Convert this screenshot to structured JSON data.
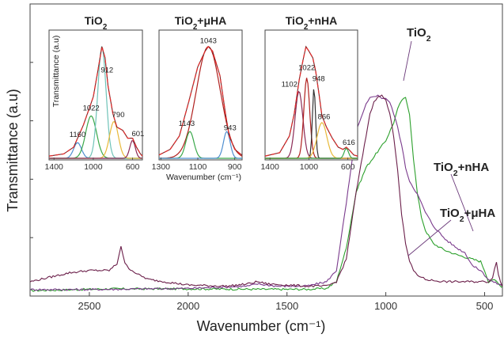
{
  "chart_data": {
    "type": "line",
    "xlabel": "Wavenumber (cm⁻¹)",
    "ylabel": "Transmittance (a.u)",
    "x_reversed": true,
    "xlim": [
      2800,
      410
    ],
    "x_ticks": [
      "2500",
      "2000",
      "1500",
      "1000",
      "500"
    ],
    "x_tick_values": [
      2500,
      2000,
      1500,
      1000,
      500
    ],
    "ylim": [
      0,
      100
    ],
    "y_ticks_labeled": false,
    "grid": false,
    "colors": {
      "TiO2": "#2ca02c",
      "nHA": "#7a3a8c",
      "uHA": "#6b1f4a",
      "fit": "#e03030"
    },
    "series": [
      {
        "name": "TiO2",
        "color": "#2ca02c",
        "x": [
          2800,
          2600,
          2400,
          2000,
          1600,
          1400,
          1300,
          1250,
          1200,
          1150,
          1100,
          1050,
          1000,
          960,
          940,
          920,
          900,
          880,
          860,
          840,
          820,
          800,
          760,
          700,
          640,
          600,
          560,
          520,
          500,
          480,
          460,
          440,
          420,
          410
        ],
        "y": [
          1,
          1.4,
          1.8,
          1.8,
          1.6,
          1.6,
          2,
          5,
          20,
          45,
          56,
          62,
          68,
          76,
          82,
          86,
          87,
          80,
          60,
          44,
          34,
          28,
          22,
          19,
          17,
          16,
          15,
          14,
          10,
          5,
          6,
          5,
          3,
          3
        ]
      },
      {
        "name": "TiO2+nHA",
        "color": "#7a3a8c",
        "x": [
          2800,
          2500,
          2000,
          1700,
          1650,
          1550,
          1400,
          1300,
          1250,
          1200,
          1150,
          1100,
          1080,
          1060,
          1040,
          1020,
          1000,
          980,
          960,
          940,
          920,
          900,
          880,
          860,
          840,
          820,
          800,
          760,
          700,
          640,
          600,
          560,
          520,
          500,
          480,
          460,
          430,
          410
        ],
        "y": [
          1.5,
          1.5,
          2,
          3,
          4,
          3,
          3,
          5,
          10,
          40,
          72,
          84,
          87,
          88,
          88,
          87,
          87,
          85,
          80,
          74,
          66,
          56,
          50,
          47,
          44,
          40,
          36,
          30,
          24,
          20,
          18,
          12,
          10,
          8,
          6,
          5,
          4,
          3
        ]
      },
      {
        "name": "TiO2+μHA",
        "color": "#6b1f4a",
        "x": [
          2800,
          2700,
          2600,
          2500,
          2400,
          2360,
          2340,
          2320,
          2300,
          2250,
          2200,
          2000,
          1800,
          1700,
          1650,
          1600,
          1400,
          1300,
          1250,
          1200,
          1150,
          1100,
          1080,
          1060,
          1040,
          1020,
          1000,
          980,
          960,
          940,
          920,
          900,
          880,
          860,
          840,
          820,
          800,
          760,
          700,
          640,
          600,
          560,
          520,
          500,
          480,
          460,
          440,
          430,
          420,
          410
        ],
        "y": [
          5,
          7,
          9,
          10,
          10,
          13,
          21,
          13,
          11,
          8,
          6,
          3.5,
          3,
          4,
          5,
          4,
          3,
          3,
          5,
          15,
          45,
          70,
          80,
          85,
          88,
          88,
          86,
          80,
          70,
          55,
          35,
          22,
          14,
          10,
          8,
          7,
          6,
          5.5,
          5,
          5,
          5,
          5,
          5,
          5,
          5,
          7,
          14,
          8,
          5,
          3
        ]
      }
    ],
    "annotations": [
      {
        "text": "TiO",
        "sub": "2",
        "rest": "",
        "x": 870,
        "y": 96
      },
      {
        "text": "TiO",
        "sub": "2",
        "rest": "+nHA",
        "x": 620,
        "y": 52
      },
      {
        "text": "TiO",
        "sub": "2",
        "rest": "+μHA",
        "x": 560,
        "y": 33
      }
    ],
    "insets": [
      {
        "title": "TiO",
        "title_sub": "2",
        "title_rest": "",
        "xlim": [
          1450,
          500
        ],
        "x_ticks": [
          1400,
          1000,
          600
        ],
        "ylabel": "Transmittance (a.u)",
        "envelope": {
          "x": [
            1450,
            1300,
            1200,
            1100,
            1000,
            950,
            912,
            880,
            850,
            800,
            760,
            700,
            650,
            600,
            560,
            520,
            500
          ],
          "y": [
            2,
            4,
            10,
            30,
            55,
            80,
            100,
            90,
            65,
            40,
            28,
            25,
            18,
            18,
            10,
            4,
            2
          ]
        },
        "peaks": [
          {
            "center": 1160,
            "height": 14,
            "width": 40,
            "color": "#4f8fd0"
          },
          {
            "center": 1022,
            "height": 38,
            "width": 55,
            "color": "#3aa84a"
          },
          {
            "center": 912,
            "height": 100,
            "width": 42,
            "color": "#6fc3b8"
          },
          {
            "center": 790,
            "height": 33,
            "width": 45,
            "color": "#e8b93a"
          },
          {
            "center": 601,
            "height": 16,
            "width": 28,
            "color": "#8b2a55"
          }
        ],
        "peak_labels": [
          {
            "text": "912",
            "x": 860,
            "y": 77
          },
          {
            "text": "1022",
            "x": 1022,
            "y": 43
          },
          {
            "text": "1160",
            "x": 1160,
            "y": 19
          },
          {
            "text": "790",
            "x": 745,
            "y": 37
          },
          {
            "text": "601",
            "x": 545,
            "y": 20
          }
        ]
      },
      {
        "title": "TiO",
        "title_sub": "2",
        "title_rest": "+μHA",
        "xlim": [
          1310,
          860
        ],
        "x_ticks": [
          1300,
          1100,
          900
        ],
        "xlabel": "Wavenumber (cm⁻¹)",
        "envelope": {
          "x": [
            1310,
            1250,
            1200,
            1150,
            1100,
            1060,
            1043,
            1020,
            980,
            950,
            930,
            900,
            870,
            860
          ],
          "y": [
            3,
            8,
            20,
            50,
            82,
            96,
            100,
            96,
            74,
            40,
            20,
            8,
            4,
            3
          ]
        },
        "peaks": [
          {
            "center": 1043,
            "height": 100,
            "width": 65,
            "color": "#b0201e"
          },
          {
            "center": 1143,
            "height": 24,
            "width": 22,
            "color": "#3aa84a"
          },
          {
            "center": 943,
            "height": 24,
            "width": 18,
            "color": "#4f8fd0"
          }
        ],
        "peak_labels": [
          {
            "text": "1043",
            "x": 1043,
            "y": 103
          },
          {
            "text": "1143",
            "x": 1160,
            "y": 29
          },
          {
            "text": "943",
            "x": 925,
            "y": 25
          }
        ]
      },
      {
        "title": "TiO",
        "title_sub": "2",
        "title_rest": "+nHA",
        "xlim": [
          1450,
          500
        ],
        "x_ticks": [
          1400,
          1000,
          600
        ],
        "envelope": {
          "x": [
            1450,
            1300,
            1200,
            1150,
            1100,
            1060,
            1030,
            1000,
            960,
            930,
            900,
            866,
            820,
            760,
            700,
            650,
            616,
            580,
            540,
            500
          ],
          "y": [
            2,
            5,
            20,
            40,
            70,
            88,
            100,
            96,
            90,
            78,
            60,
            38,
            28,
            18,
            10,
            8,
            10,
            7,
            3,
            2
          ]
        },
        "peaks": [
          {
            "center": 1102,
            "height": 60,
            "width": 40,
            "color": "#8b2a55"
          },
          {
            "center": 1022,
            "height": 72,
            "width": 30,
            "color": "#b0201e"
          },
          {
            "center": 948,
            "height": 63,
            "width": 16,
            "color": "#333333"
          },
          {
            "center": 866,
            "height": 32,
            "width": 50,
            "color": "#e8b93a"
          },
          {
            "center": 616,
            "height": 9,
            "width": 22,
            "color": "#3aa84a"
          }
        ],
        "peak_labels": [
          {
            "text": "1102",
            "x": 1200,
            "y": 64
          },
          {
            "text": "1022",
            "x": 1022,
            "y": 79
          },
          {
            "text": "948",
            "x": 900,
            "y": 69
          },
          {
            "text": "866",
            "x": 845,
            "y": 35
          },
          {
            "text": "616",
            "x": 590,
            "y": 12
          }
        ]
      }
    ]
  }
}
